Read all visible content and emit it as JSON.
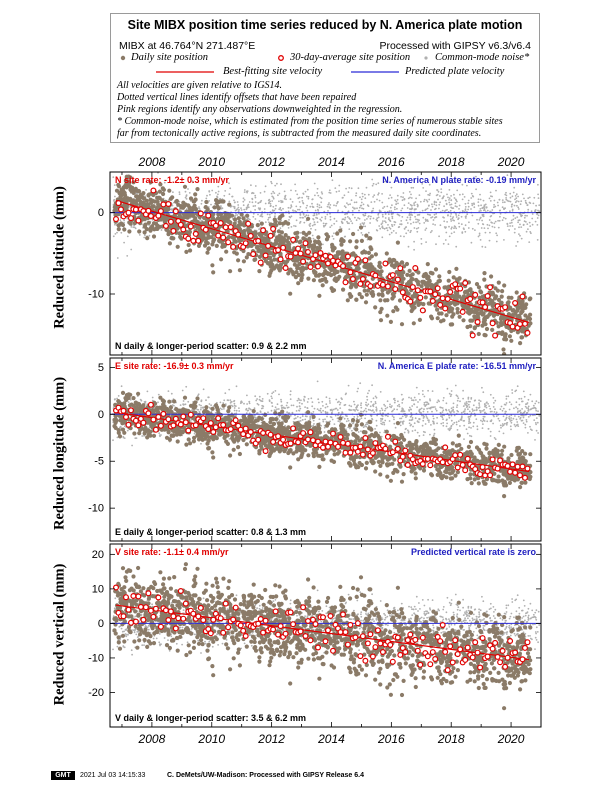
{
  "header": {
    "title": "Site MIBX position time series reduced by N. America plate motion",
    "location": "MIBX at 46.764°N 271.487°E",
    "processing": "Processed with GIPSY v6.3/v6.4",
    "legend": {
      "daily": "Daily site position",
      "avg30": "30-day-average site position",
      "common_mode": "Common-mode noise*",
      "best_fit": "Best-fitting site velocity",
      "predicted": "Predicted plate velocity"
    },
    "notes": [
      "All velocities are given relative to IGS14.",
      "Dotted vertical lines identify offsets that have been repaired",
      "Pink regions identify any observations downweighted in the regression.",
      "* Common-mode noise, which is estimated from the position time series of numerous stable sites",
      "far from tectonically active regions, is subtracted from the measured daily site coordinates."
    ]
  },
  "chart_data": [
    {
      "type": "scatter",
      "ylabel": "Reduced latitude (mm)",
      "site_rate": "N site rate:  -1.2± 0.3 mm/yr",
      "plate_rate": "N. America N plate rate:  -0.19 mm/yr",
      "scatter": "N daily & longer-period scatter:   0.9 &   2.2 mm",
      "xlim": [
        2006.6,
        2021.0
      ],
      "ylim": [
        -17.5,
        5
      ],
      "yticks": [
        0,
        -10
      ],
      "fit": {
        "x": [
          2006.8,
          2020.6
        ],
        "y": [
          1.5,
          -13.5
        ]
      },
      "predicted": {
        "value": 0
      },
      "avg30_noise": 1.2,
      "daily_noise": 1.6,
      "common_noise": 1.6,
      "series": [
        {
          "name": "Daily site position"
        },
        {
          "name": "30-day-average site position"
        },
        {
          "name": "Common-mode noise*"
        },
        {
          "name": "Best-fitting site velocity"
        },
        {
          "name": "Predicted plate velocity"
        }
      ]
    },
    {
      "type": "scatter",
      "ylabel": "Reduced longitude (mm)",
      "site_rate": "E site rate:  -16.9± 0.3 mm/yr",
      "plate_rate": "N. America E plate rate:  -16.51 mm/yr",
      "scatter": "E daily & longer-period scatter:   0.8 &   1.3 mm",
      "xlim": [
        2006.6,
        2021.0
      ],
      "ylim": [
        -13.5,
        6
      ],
      "yticks": [
        5,
        0,
        -5,
        -10
      ],
      "fit": {
        "x": [
          2006.8,
          2020.6
        ],
        "y": [
          0.2,
          -6.1
        ]
      },
      "predicted": {
        "value": 0
      },
      "avg30_noise": 0.6,
      "daily_noise": 1.0,
      "common_noise": 1.1,
      "series": [
        {
          "name": "Daily site position"
        },
        {
          "name": "30-day-average site position"
        },
        {
          "name": "Common-mode noise*"
        },
        {
          "name": "Best-fitting site velocity"
        },
        {
          "name": "Predicted plate velocity"
        }
      ]
    },
    {
      "type": "scatter",
      "ylabel": "Reduced vertical (mm)",
      "site_rate": "V site rate:  -1.1± 0.4 mm/yr",
      "plate_rate": "Predicted vertical rate is zero",
      "scatter": "V daily & longer-period scatter:   3.5 &   6.2 mm",
      "xlim": [
        2006.6,
        2021.0
      ],
      "ylim": [
        -30,
        23
      ],
      "yticks": [
        20,
        10,
        0,
        -10,
        -20
      ],
      "fit": {
        "x": [
          2006.8,
          2020.6
        ],
        "y": [
          5.3,
          -10.5
        ]
      },
      "predicted": {
        "value": 0
      },
      "avg30_noise": 3.0,
      "daily_noise": 5.0,
      "common_noise": 3.0,
      "series": [
        {
          "name": "Daily site position"
        },
        {
          "name": "30-day-average site position"
        },
        {
          "name": "Common-mode noise*"
        },
        {
          "name": "Best-fitting site velocity"
        },
        {
          "name": "Predicted plate velocity"
        }
      ]
    }
  ],
  "x_ticks": [
    "2008",
    "2010",
    "2012",
    "2014",
    "2016",
    "2018",
    "2020"
  ],
  "x_tick_values": [
    2008,
    2010,
    2012,
    2014,
    2016,
    2018,
    2020
  ],
  "footer": {
    "logo": "GMT",
    "timestamp": "2021 Jul 03 14:15:33",
    "credit": "C. DeMets/UW-Madison: Processed with GIPSY Release 6.4"
  },
  "colors": {
    "daily": "#8b7b68",
    "avg30_edge": "#e00000",
    "common_mode": "#b0b0b0",
    "best_fit": "#e00000",
    "predicted": "#2a2ad8",
    "site_rate_text": "#e00000",
    "plate_rate_text": "#2020c0"
  }
}
